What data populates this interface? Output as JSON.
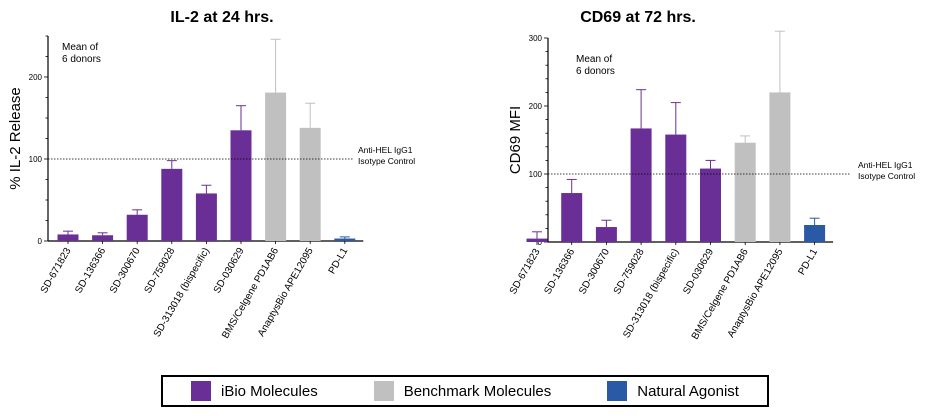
{
  "colors": {
    "ibio": "#6a2f96",
    "benchmark": "#c0c0c0",
    "natural": "#2a59a6"
  },
  "legend": {
    "items": [
      {
        "label": "iBio Molecules",
        "group": "ibio"
      },
      {
        "label": "Benchmark Molecules",
        "group": "benchmark"
      },
      {
        "label": "Natural Agonist",
        "group": "natural"
      }
    ]
  },
  "chart_data": [
    {
      "type": "bar",
      "title": "IL-2 at 24 hrs.",
      "ylabel": "% IL-2 Release",
      "xlabel": "",
      "ylim": [
        0,
        250
      ],
      "yticks": [
        0,
        100,
        200
      ],
      "annotation": "Mean of\n6 donors",
      "reference": {
        "value": 100,
        "label": "Anti-HEL IgG1\nIsotype Control"
      },
      "categories": [
        "SD-671823",
        "SD-136366",
        "SD-300670",
        "SD-759028",
        "SD-313018 (bispecific)",
        "SD-030629",
        "BMS/Celgene PD1AB6",
        "AnaptysBio APE12095",
        "PD-L1"
      ],
      "groups": [
        "ibio",
        "ibio",
        "ibio",
        "ibio",
        "ibio",
        "ibio",
        "benchmark",
        "benchmark",
        "natural"
      ],
      "values": [
        8,
        7,
        32,
        88,
        58,
        135,
        181,
        138,
        3
      ],
      "errors": [
        4,
        3,
        6,
        10,
        10,
        30,
        65,
        30,
        2
      ]
    },
    {
      "type": "bar",
      "title": "CD69 at 72 hrs.",
      "ylabel": "CD69 MFI",
      "xlabel": "",
      "ylim": [
        0,
        300
      ],
      "yticks": [
        0,
        100,
        200,
        300
      ],
      "annotation": "Mean of\n6 donors",
      "reference": {
        "value": 100,
        "label": "Anti-HEL IgG1\nIsotype Control"
      },
      "categories": [
        "SD-671823",
        "SD-136366",
        "SD-300670",
        "SD-759028",
        "SD-313018 (bispecific)",
        "SD-030629",
        "BMS/Celgene PD1AB6",
        "AnaptysBio APE12095",
        "PD-L1"
      ],
      "groups": [
        "ibio",
        "ibio",
        "ibio",
        "ibio",
        "ibio",
        "ibio",
        "benchmark",
        "benchmark",
        "natural"
      ],
      "values": [
        5,
        72,
        22,
        167,
        158,
        108,
        146,
        220,
        25
      ],
      "errors": [
        10,
        20,
        10,
        57,
        47,
        12,
        10,
        90,
        10
      ]
    }
  ]
}
